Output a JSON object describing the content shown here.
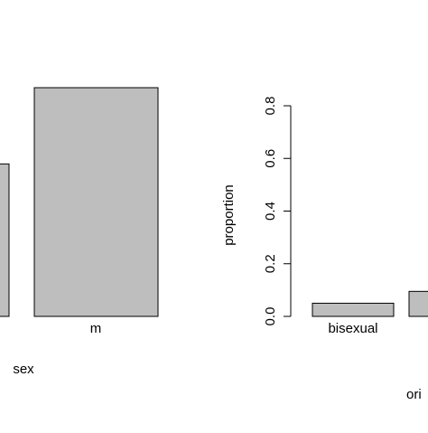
{
  "chart_data": [
    {
      "type": "bar",
      "categories": [
        "",
        "m"
      ],
      "values": [
        0.58,
        0.87
      ],
      "xlabel": "sex",
      "ylabel": "",
      "ylim": [
        0,
        0.87
      ],
      "bar_color": "#bebebe",
      "grid": false
    },
    {
      "type": "bar",
      "categories": [
        "bisexual",
        ""
      ],
      "values": [
        0.05,
        0.095
      ],
      "xlabel": "ori",
      "ylabel": "proportion",
      "ylim": [
        0,
        0.8
      ],
      "yticks": [
        "0.0",
        "0.2",
        "0.4",
        "0.6",
        "0.8"
      ],
      "bar_color": "#bebebe",
      "grid": false
    }
  ]
}
